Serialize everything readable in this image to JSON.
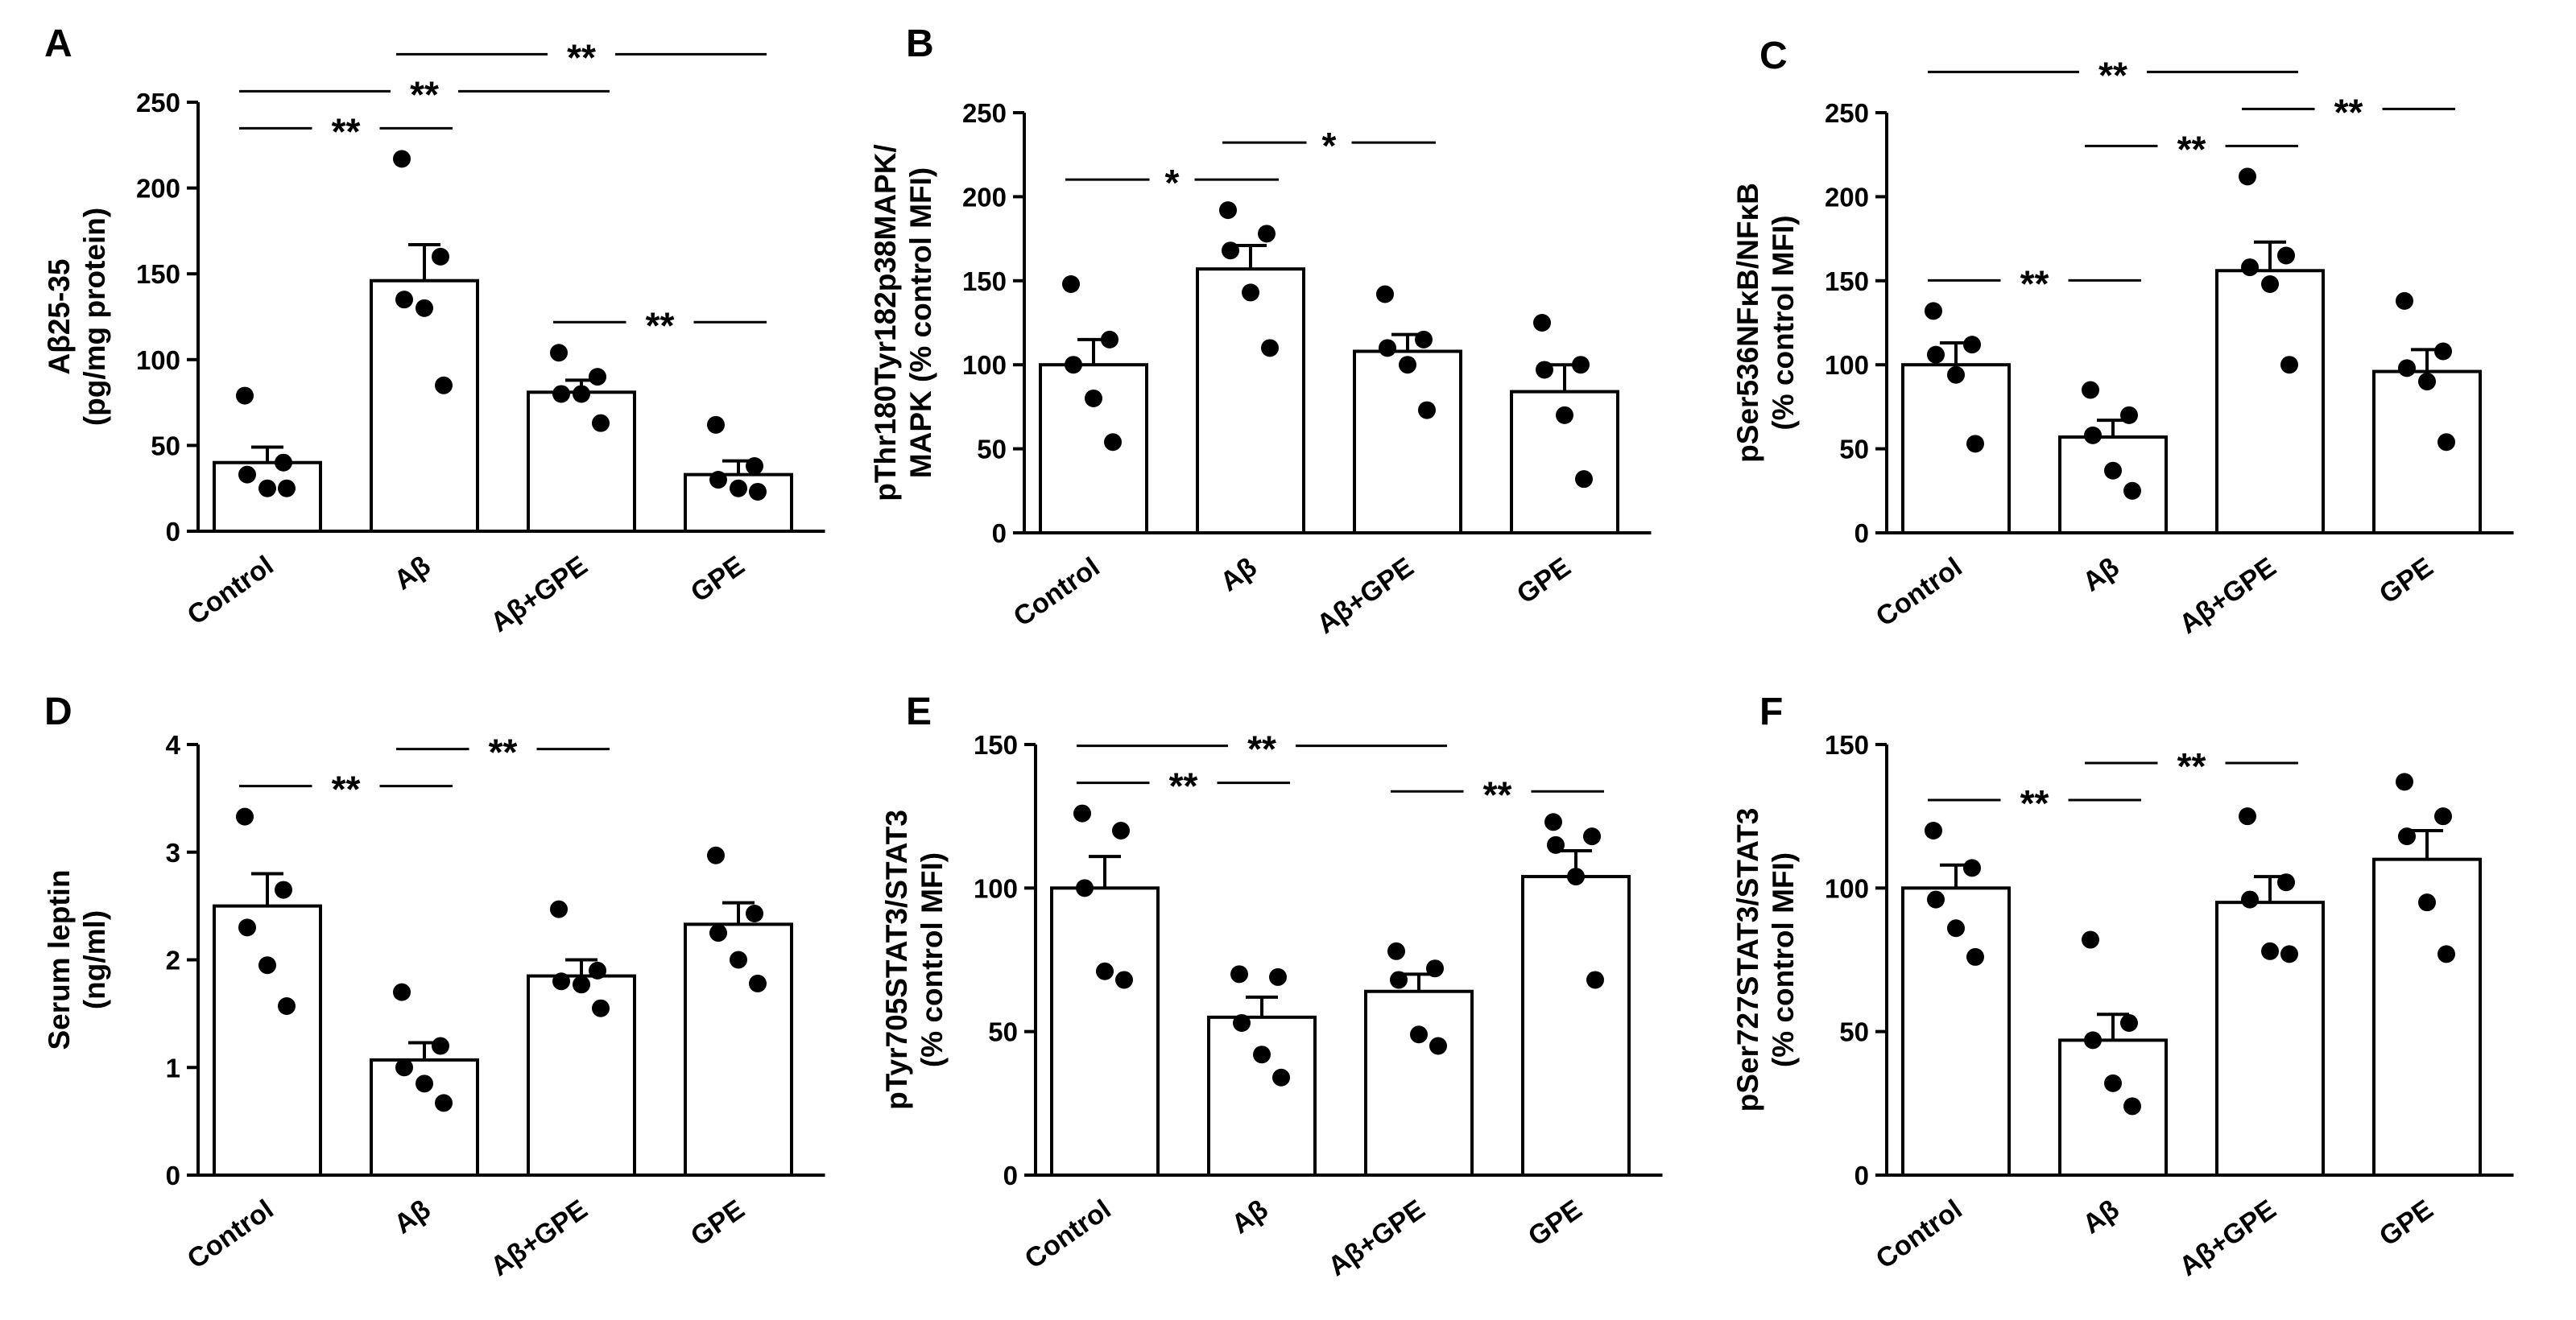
{
  "chart_data": [
    {
      "panel": "A",
      "type": "bar",
      "categories": [
        "Control",
        "Aβ",
        "Aβ+GPE",
        "GPE"
      ],
      "ylabel": [
        "Aβ25-35",
        "(pg/mg protein)"
      ],
      "ylim": [
        0,
        250
      ],
      "yticks": [
        0,
        50,
        100,
        150,
        200,
        250
      ],
      "values": [
        40,
        146,
        81,
        33
      ],
      "sem": [
        9,
        21,
        7,
        8
      ],
      "points": [
        [
          79,
          40,
          33,
          25,
          25
        ],
        [
          217,
          160,
          135,
          130,
          85
        ],
        [
          104,
          90,
          80,
          80,
          63
        ],
        [
          62,
          38,
          30,
          25,
          23
        ]
      ],
      "significance": [
        {
          "a": 0,
          "b": 1,
          "label": "**"
        },
        {
          "a": 0,
          "b": 2,
          "label": "**"
        },
        {
          "a": 1,
          "b": 3,
          "label": "**"
        },
        {
          "a": 2,
          "b": 3,
          "label": "**"
        }
      ]
    },
    {
      "panel": "B",
      "type": "bar",
      "categories": [
        "Control",
        "Aβ",
        "Aβ+GPE",
        "GPE"
      ],
      "ylabel": [
        "pThr180Tyr182p38MAPK/",
        "MAPK (% control MFI)"
      ],
      "ylim": [
        0,
        250
      ],
      "yticks": [
        0,
        50,
        100,
        150,
        200,
        250
      ],
      "values": [
        100,
        157,
        108,
        84
      ],
      "sem": [
        15,
        14,
        10,
        16
      ],
      "points": [
        [
          148,
          115,
          100,
          80,
          54
        ],
        [
          192,
          178,
          168,
          143,
          110
        ],
        [
          142,
          115,
          110,
          100,
          73
        ],
        [
          125,
          100,
          97,
          70,
          32
        ]
      ],
      "significance": [
        {
          "a": 0,
          "b": 1,
          "label": "*"
        },
        {
          "a": 1,
          "b": 2,
          "label": "*"
        }
      ]
    },
    {
      "panel": "C",
      "type": "bar",
      "categories": [
        "Control",
        "Aβ",
        "Aβ+GPE",
        "GPE"
      ],
      "ylabel": [
        "pSer536NFκB/NFκB",
        "(% control MFI)"
      ],
      "ylim": [
        0,
        250
      ],
      "yticks": [
        0,
        50,
        100,
        150,
        200,
        250
      ],
      "values": [
        100,
        57,
        156,
        96
      ],
      "sem": [
        13,
        10,
        17,
        13
      ],
      "points": [
        [
          132,
          112,
          106,
          94,
          53
        ],
        [
          85,
          70,
          58,
          37,
          25
        ],
        [
          212,
          165,
          158,
          148,
          100
        ],
        [
          138,
          108,
          98,
          90,
          54
        ]
      ],
      "significance": [
        {
          "a": 0,
          "b": 1,
          "label": "**"
        },
        {
          "a": 0,
          "b": 2,
          "label": "**"
        },
        {
          "a": 1,
          "b": 2,
          "label": "**"
        },
        {
          "a": 2,
          "b": 3,
          "label": "**"
        }
      ]
    },
    {
      "panel": "D",
      "type": "bar",
      "categories": [
        "Control",
        "Aβ",
        "Aβ+GPE",
        "GPE"
      ],
      "ylabel": [
        "Serum leptin",
        "(ng/ml)"
      ],
      "ylim": [
        0,
        4
      ],
      "yticks": [
        0,
        1,
        2,
        3,
        4
      ],
      "values": [
        2.5,
        1.07,
        1.85,
        2.33
      ],
      "sem": [
        0.3,
        0.16,
        0.15,
        0.2
      ],
      "points": [
        [
          3.33,
          2.65,
          2.3,
          1.95,
          1.57
        ],
        [
          1.7,
          1.2,
          1.0,
          0.85,
          0.67
        ],
        [
          2.47,
          1.9,
          1.8,
          1.77,
          1.55
        ],
        [
          2.97,
          2.43,
          2.25,
          2.0,
          1.78
        ]
      ],
      "significance": [
        {
          "a": 0,
          "b": 1,
          "label": "**"
        },
        {
          "a": 1,
          "b": 2,
          "label": "**"
        }
      ]
    },
    {
      "panel": "E",
      "type": "bar",
      "categories": [
        "Control",
        "Aβ",
        "Aβ+GPE",
        "GPE"
      ],
      "ylabel": [
        "pTyr705STAT3/STAT3",
        "(% control MFI)"
      ],
      "ylim": [
        0,
        150
      ],
      "yticks": [
        0,
        50,
        100,
        150
      ],
      "values": [
        100,
        55,
        64,
        104
      ],
      "sem": [
        11,
        7,
        6,
        9
      ],
      "points": [
        [
          126,
          120,
          100,
          71,
          68
        ],
        [
          70,
          69,
          53,
          42,
          34
        ],
        [
          78,
          72,
          68,
          49,
          45
        ],
        [
          123,
          118,
          115,
          104,
          68
        ]
      ],
      "significance": [
        {
          "a": 0,
          "b": 1,
          "label": "**"
        },
        {
          "a": 0,
          "b": 2,
          "label": "**"
        },
        {
          "a": 2,
          "b": 3,
          "label": "**"
        }
      ]
    },
    {
      "panel": "F",
      "type": "bar",
      "categories": [
        "Control",
        "Aβ",
        "Aβ+GPE",
        "GPE"
      ],
      "ylabel": [
        "pSer727STAT3/STAT3",
        "(% control MFI)"
      ],
      "ylim": [
        0,
        150
      ],
      "yticks": [
        0,
        50,
        100,
        150
      ],
      "values": [
        100,
        47,
        95,
        110
      ],
      "sem": [
        8,
        9,
        9,
        10
      ],
      "points": [
        [
          120,
          107,
          96,
          86,
          76
        ],
        [
          82,
          53,
          47,
          32,
          24
        ],
        [
          125,
          102,
          96,
          78,
          77
        ],
        [
          137,
          125,
          118,
          95,
          77
        ]
      ],
      "significance": [
        {
          "a": 0,
          "b": 1,
          "label": "**"
        },
        {
          "a": 1,
          "b": 2,
          "label": "**"
        }
      ]
    }
  ]
}
